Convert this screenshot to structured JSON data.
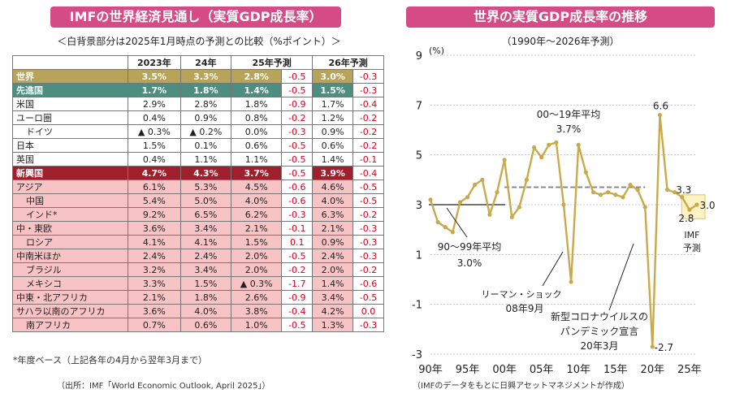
{
  "left_title": "IMFの世界経済見通し（実質GDP成長率）",
  "left_subtitle": "＜白背景部分は2025年1月時点の予測との比較（%ポイント）＞",
  "table": {
    "headers": [
      "",
      "2023年",
      "24年",
      "25年予測",
      "",
      "26年予測",
      ""
    ],
    "rows": [
      {
        "name": "世界",
        "v23": "3.5%",
        "v24": "3.3%",
        "v25": "2.8%",
        "d25": "-0.5",
        "v26": "3.0%",
        "d26": "-0.3",
        "style": "world"
      },
      {
        "name": "先進国",
        "v23": "1.7%",
        "v24": "1.8%",
        "v25": "1.4%",
        "d25": "-0.5",
        "v26": "1.5%",
        "d26": "-0.3",
        "style": "adv"
      },
      {
        "name": "米国",
        "v23": "2.9%",
        "v24": "2.8%",
        "v25": "1.8%",
        "d25": "-0.9",
        "v26": "1.7%",
        "d26": "-0.4",
        "style": "advsub"
      },
      {
        "name": "ユーロ圏",
        "v23": "0.4%",
        "v24": "0.9%",
        "v25": "0.8%",
        "d25": "-0.2",
        "v26": "1.2%",
        "d26": "-0.2",
        "style": "advsub"
      },
      {
        "name": "ドイツ",
        "v23": "▲ 0.3%",
        "v24": "▲ 0.2%",
        "v25": "0.0%",
        "d25": "-0.3",
        "v26": "0.9%",
        "d26": "-0.2",
        "style": "advsub",
        "indent": true
      },
      {
        "name": "日本",
        "v23": "1.5%",
        "v24": "0.1%",
        "v25": "0.6%",
        "d25": "-0.5",
        "v26": "0.6%",
        "d26": "-0.2",
        "style": "advsub"
      },
      {
        "name": "英国",
        "v23": "0.4%",
        "v24": "1.1%",
        "v25": "1.1%",
        "d25": "-0.5",
        "v26": "1.4%",
        "d26": "-0.1",
        "style": "advsub"
      },
      {
        "name": "新興国",
        "v23": "4.7%",
        "v24": "4.3%",
        "v25": "3.7%",
        "d25": "-0.5",
        "v26": "3.9%",
        "d26": "-0.4",
        "style": "eme"
      },
      {
        "name": "アジア",
        "v23": "6.1%",
        "v24": "5.3%",
        "v25": "4.5%",
        "d25": "-0.6",
        "v26": "4.6%",
        "d26": "-0.5",
        "style": "emesub"
      },
      {
        "name": "中国",
        "v23": "5.4%",
        "v24": "5.0%",
        "v25": "4.0%",
        "d25": "-0.6",
        "v26": "4.0%",
        "d26": "-0.5",
        "style": "emesub",
        "indent": true
      },
      {
        "name": "インド*",
        "v23": "9.2%",
        "v24": "6.5%",
        "v25": "6.2%",
        "d25": "-0.3",
        "v26": "6.3%",
        "d26": "-0.2",
        "style": "emesub",
        "indent": true
      },
      {
        "name": "中・東欧",
        "v23": "3.6%",
        "v24": "3.4%",
        "v25": "2.1%",
        "d25": "-0.1",
        "v26": "2.1%",
        "d26": "-0.3",
        "style": "emesub"
      },
      {
        "name": "ロシア",
        "v23": "4.1%",
        "v24": "4.1%",
        "v25": "1.5%",
        "d25": "0.1",
        "v26": "0.9%",
        "d26": "-0.3",
        "style": "emesub",
        "indent": true
      },
      {
        "name": "中南米ほか",
        "v23": "2.4%",
        "v24": "2.4%",
        "v25": "2.0%",
        "d25": "-0.5",
        "v26": "2.4%",
        "d26": "-0.3",
        "style": "emesub"
      },
      {
        "name": "ブラジル",
        "v23": "3.2%",
        "v24": "3.4%",
        "v25": "2.0%",
        "d25": "-0.2",
        "v26": "2.0%",
        "d26": "-0.2",
        "style": "emesub",
        "indent": true
      },
      {
        "name": "メキシコ",
        "v23": "3.3%",
        "v24": "1.5%",
        "v25": "▲ 0.3%",
        "d25": "-1.7",
        "v26": "1.4%",
        "d26": "-0.6",
        "style": "emesub",
        "indent": true
      },
      {
        "name": "中東・北アフリカ",
        "v23": "2.1%",
        "v24": "1.8%",
        "v25": "2.6%",
        "d25": "-0.9",
        "v26": "3.4%",
        "d26": "-0.5",
        "style": "emesub"
      },
      {
        "name": "サハラ以南のアフリカ",
        "v23": "3.6%",
        "v24": "4.0%",
        "v25": "3.8%",
        "d25": "-0.4",
        "v26": "4.2%",
        "d26": "0.0",
        "style": "emesub"
      },
      {
        "name": "南アフリカ",
        "v23": "0.7%",
        "v24": "0.6%",
        "v25": "1.0%",
        "d25": "-0.5",
        "v26": "1.3%",
        "d26": "-0.3",
        "style": "emesub",
        "indent": true
      }
    ]
  },
  "note": "*年度ベース（上記各年の4月から翌年3月まで）",
  "source": "（出所：IMF「World Economic Outlook, April 2025」）",
  "chart_data": {
    "type": "line",
    "title": "世界の実質GDP成長率の推移",
    "subtitle": "（1990年〜2026年予測）",
    "ylabel": "(%)",
    "ylim": [
      -3,
      9
    ],
    "yticks": [
      9,
      7,
      5,
      3,
      1,
      -1,
      -3
    ],
    "xticks": [
      1990,
      1995,
      2000,
      2005,
      2010,
      2015,
      2020,
      2025
    ],
    "xtick_labels": [
      "90年",
      "95年",
      "00年",
      "05年",
      "10年",
      "15年",
      "20年",
      "25年"
    ],
    "x": [
      1990,
      1991,
      1992,
      1993,
      1994,
      1995,
      1996,
      1997,
      1998,
      1999,
      2000,
      2001,
      2002,
      2003,
      2004,
      2005,
      2006,
      2007,
      2008,
      2009,
      2010,
      2011,
      2012,
      2013,
      2014,
      2015,
      2016,
      2017,
      2018,
      2019,
      2020,
      2021,
      2022,
      2023,
      2024,
      2025,
      2026
    ],
    "values": [
      3.2,
      2.3,
      2.1,
      1.9,
      3.1,
      3.3,
      3.8,
      4.0,
      2.6,
      3.5,
      4.8,
      2.5,
      2.9,
      4.0,
      5.3,
      4.9,
      5.4,
      5.5,
      3.0,
      -0.1,
      5.4,
      4.3,
      3.5,
      3.4,
      3.5,
      3.4,
      3.3,
      3.8,
      3.6,
      2.9,
      -2.7,
      6.6,
      3.6,
      3.5,
      3.3,
      2.8,
      3.0
    ],
    "averages": [
      {
        "label": "90〜99年平均",
        "value": 3.0,
        "value_label": "3.0%",
        "from": 1990,
        "to": 1999
      },
      {
        "label": "00〜19年平均",
        "value": 3.7,
        "value_label": "3.7%",
        "from": 2000,
        "to": 2019
      }
    ],
    "annotations": {
      "peak": "6.6",
      "trough": "-2.7",
      "v2024": "3.3",
      "v2025": "2.8",
      "v2026": "3.0",
      "imf_forecast": "IMF 予測",
      "lehman": "リーマン・ショック",
      "lehman_date": "08年9月",
      "covid1": "新型コロナウイルスの",
      "covid2": "パンデミック宣言",
      "covid_date": "20年3月"
    },
    "line_color": "#c8aa4a",
    "avg1_color": "#222222",
    "avg2_color": "#888888"
  },
  "chart_source": "（IMFのデータをもとに日興アセットマネジメントが作成）",
  "colors": {
    "title_bg": "#d54b86",
    "world": "#b8a35a",
    "advanced": "#4e8e80",
    "emerging": "#a01f2c",
    "emerging_sub": "#f7c3c4",
    "diff": "#d6001c",
    "forecast_box": "#fff3c4"
  }
}
